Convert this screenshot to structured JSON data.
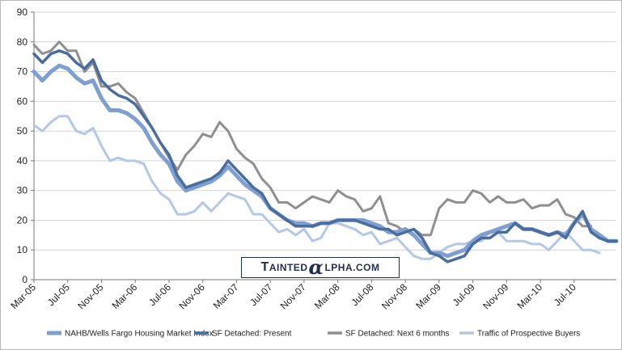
{
  "chart_data": {
    "type": "line",
    "title": "",
    "xlabel": "",
    "ylabel": "",
    "ylim": [
      0,
      90
    ],
    "yticks": [
      0,
      10,
      20,
      30,
      40,
      50,
      60,
      70,
      80,
      90
    ],
    "grid": "horizontal",
    "legend_position": "bottom",
    "x_tick_labels": [
      "Mar-05",
      "Jul-05",
      "Nov-05",
      "Mar-06",
      "Jul-06",
      "Nov-06",
      "Mar-07",
      "Jul-07",
      "Nov-07",
      "Mar-08",
      "Jul-08",
      "Nov-08",
      "Mar-09",
      "Jul-09",
      "Nov-09",
      "Mar-10",
      "Jul-10"
    ],
    "x_tick_every": 4,
    "series": [
      {
        "name": "NAHB/Wells Fargo Housing Market Index",
        "color": "#7f9fd0",
        "values": [
          70,
          67,
          70,
          72,
          71,
          68,
          66,
          67,
          61,
          57,
          57,
          56,
          54,
          51,
          46,
          42,
          39,
          33,
          30,
          31,
          32,
          33,
          35,
          38,
          35,
          32,
          30,
          28,
          24,
          22,
          20,
          19,
          19,
          18,
          19,
          19,
          20,
          20,
          20,
          20,
          19,
          18,
          16,
          16,
          17,
          15,
          12,
          9,
          9,
          8,
          9,
          10,
          13,
          15,
          16,
          17,
          18,
          19,
          17,
          17,
          16,
          15,
          16,
          15,
          19,
          22,
          17,
          15,
          13,
          13
        ]
      },
      {
        "name": "SF Detached: Present",
        "color": "#4a6d9f",
        "values": [
          76,
          73,
          76,
          77,
          76,
          73,
          71,
          74,
          67,
          64,
          62,
          61,
          59,
          55,
          51,
          46,
          42,
          35,
          31,
          32,
          33,
          34,
          36,
          40,
          37,
          34,
          31,
          29,
          24,
          22,
          20,
          18,
          18,
          18,
          19,
          19,
          20,
          20,
          20,
          19,
          18,
          17,
          17,
          15,
          16,
          17,
          14,
          9,
          8,
          6,
          7,
          8,
          12,
          14,
          14,
          16,
          16,
          19,
          17,
          17,
          16,
          15,
          16,
          14,
          19,
          23,
          16,
          14,
          13,
          13
        ]
      },
      {
        "name": "SF Detached: Next 6 months",
        "color": "#8f8f8f",
        "values": [
          79,
          76,
          77,
          80,
          77,
          77,
          70,
          73,
          65,
          65,
          66,
          63,
          61,
          56,
          51,
          46,
          41,
          37,
          42,
          45,
          49,
          48,
          53,
          50,
          44,
          41,
          39,
          34,
          31,
          26,
          26,
          24,
          26,
          28,
          27,
          26,
          30,
          28,
          27,
          23,
          24,
          28,
          19,
          18,
          16,
          17,
          15,
          15,
          24,
          27,
          26,
          26,
          30,
          29,
          26,
          28,
          26,
          26,
          27,
          24,
          25,
          25,
          27,
          22,
          21,
          18,
          18
        ]
      },
      {
        "name": "Traffic of Prospective Buyers",
        "color": "#b3c7e6",
        "values": [
          52,
          50,
          53,
          55,
          55,
          50,
          49,
          51,
          45,
          40,
          41,
          40,
          40,
          39,
          33,
          29,
          27,
          22,
          22,
          23,
          26,
          23,
          26,
          29,
          28,
          27,
          22,
          22,
          19,
          16,
          17,
          15,
          17,
          13,
          14,
          19,
          19,
          18,
          17,
          15,
          16,
          12,
          13,
          14,
          11,
          8,
          7,
          7,
          9,
          11,
          12,
          12,
          13,
          13,
          16,
          16,
          13,
          13,
          13,
          12,
          12,
          10,
          13,
          16,
          13,
          10,
          10,
          9
        ]
      }
    ]
  },
  "watermark": {
    "part1": "T",
    "part2": "AINTED",
    "symbol": "α",
    "part3": "LPHA",
    "part4": ".COM"
  }
}
